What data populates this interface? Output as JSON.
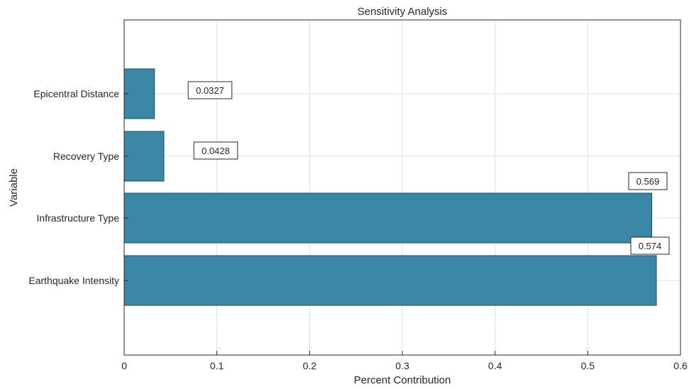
{
  "chart_data": {
    "type": "bar",
    "orientation": "horizontal",
    "title": "Sensitivity Analysis",
    "xlabel": "Percent Contribution",
    "ylabel": "Variable",
    "categories": [
      "Epicentral Distance",
      "Recovery Type",
      "Infrastructure Type",
      "Earthquake Intensity"
    ],
    "values": [
      0.0327,
      0.0428,
      0.569,
      0.574
    ],
    "data_labels": [
      "0.0327",
      "0.0428",
      "0.569",
      "0.574"
    ],
    "xlim": [
      0,
      0.6
    ],
    "xticks": [
      0,
      0.1,
      0.2,
      0.3,
      0.4,
      0.5,
      0.6
    ],
    "xtick_labels": [
      "0",
      "0.1",
      "0.2",
      "0.3",
      "0.4",
      "0.5",
      "0.6"
    ],
    "grid": true,
    "bar_color": "#3a87a6",
    "bar_edge_color": "#1f4a5c"
  }
}
